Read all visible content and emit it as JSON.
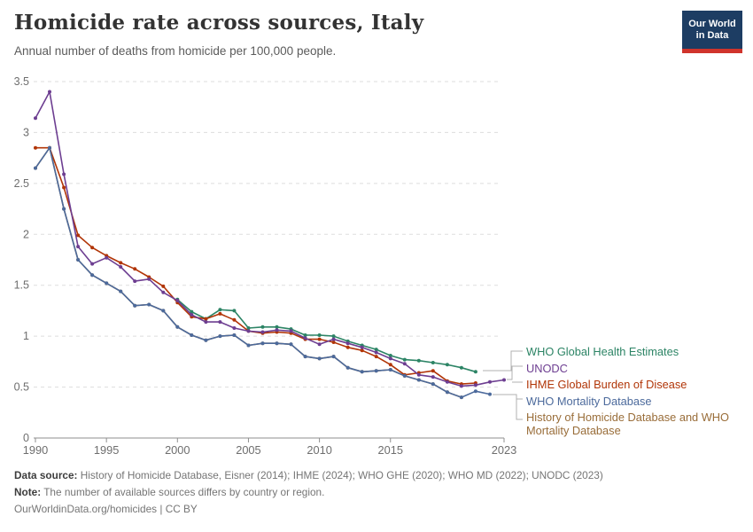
{
  "header": {
    "title": "Homicide rate across sources, Italy",
    "subtitle": "Annual number of deaths from homicide per 100,000 people.",
    "logo": {
      "line1": "Our World",
      "line2": "in Data",
      "bg_color": "#1d3d63",
      "stripe_color": "#d0342c"
    }
  },
  "chart_data": {
    "type": "line",
    "title": "Homicide rate across sources, Italy",
    "xlabel": "",
    "ylabel": "",
    "x_range": [
      1990,
      2023
    ],
    "y_range": [
      0,
      3.5
    ],
    "x_ticks": [
      1990,
      1995,
      2000,
      2005,
      2010,
      2015,
      2023
    ],
    "y_ticks": [
      0,
      0.5,
      1,
      1.5,
      2,
      2.5,
      3,
      3.5
    ],
    "grid": "horizontal-dashed",
    "legend_position": "right",
    "axis_color": "#8f8f8f",
    "grid_color": "#dddddd",
    "tick_label_color": "#6e6e6e",
    "series": [
      {
        "name": "WHO Global Health Estimates",
        "color": "#2C8465",
        "start_year": 2000,
        "values": [
          1.36,
          1.24,
          1.17,
          1.26,
          1.25,
          1.08,
          1.09,
          1.09,
          1.07,
          1.01,
          1.01,
          1.0,
          0.95,
          0.91,
          0.87,
          0.81,
          0.77,
          0.76,
          0.74,
          0.72,
          0.69,
          0.65
        ]
      },
      {
        "name": "UNODC",
        "color": "#6D3E91",
        "start_year": 1990,
        "values": [
          3.14,
          3.4,
          2.59,
          1.88,
          1.71,
          1.77,
          1.68,
          1.54,
          1.56,
          1.43,
          1.35,
          1.21,
          1.14,
          1.14,
          1.08,
          1.05,
          1.04,
          1.06,
          1.05,
          0.98,
          0.92,
          0.97,
          0.93,
          0.89,
          0.84,
          0.78,
          0.73,
          0.62,
          0.6,
          0.55,
          0.51,
          0.52,
          0.55,
          0.57
        ]
      },
      {
        "name": "IHME Global Burden of Disease",
        "color": "#B13507",
        "start_year": 1990,
        "values": [
          2.85,
          2.85,
          2.46,
          1.99,
          1.87,
          1.79,
          1.72,
          1.66,
          1.58,
          1.49,
          1.33,
          1.19,
          1.17,
          1.22,
          1.16,
          1.05,
          1.03,
          1.04,
          1.03,
          0.97,
          0.97,
          0.94,
          0.89,
          0.86,
          0.8,
          0.72,
          0.62,
          0.64,
          0.66,
          0.56,
          0.53,
          0.54
        ]
      },
      {
        "name": "WHO Mortality Database",
        "color": "#4C6A9C",
        "start_year": 1990,
        "values": [
          2.65,
          2.85,
          2.25,
          1.75,
          1.6,
          1.52,
          1.44,
          1.3,
          1.31,
          1.25,
          1.09,
          1.01,
          0.96,
          1.0,
          1.01,
          0.91,
          0.93,
          0.93,
          0.92,
          0.8,
          0.78,
          0.8,
          0.69,
          0.65,
          0.66,
          0.67,
          0.61,
          0.57,
          0.53,
          0.45,
          0.4,
          0.46,
          0.43
        ]
      },
      {
        "name": "History of Homicide Database and WHO Mortality Database",
        "color": "#996D39",
        "start_year": 1990,
        "values": [
          2.65,
          2.85,
          2.25,
          1.75,
          1.6,
          1.52,
          1.44,
          1.3,
          1.31,
          1.25,
          1.09,
          1.01,
          0.96,
          1.0,
          1.01,
          0.91,
          0.93,
          0.93,
          0.92,
          0.8,
          0.78,
          0.8,
          0.69,
          0.65,
          0.66,
          0.67,
          0.61,
          0.57,
          0.53,
          0.45,
          0.4
        ]
      }
    ]
  },
  "footer": {
    "data_source_label": "Data source:",
    "data_source_text": " History of Homicide Database, Eisner (2014); IHME (2024); WHO GHE (2020); WHO MD (2022); UNODC (2023)",
    "note_label": "Note:",
    "note_text": " The number of available sources differs by country or region.",
    "link_text": "OurWorldinData.org/homicides | CC BY"
  }
}
